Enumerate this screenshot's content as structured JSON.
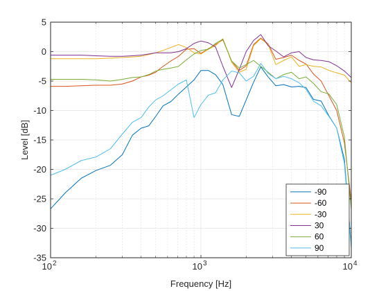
{
  "chart_data": {
    "type": "line",
    "title": "",
    "xlabel": "Frequency [Hz]",
    "ylabel": "Level [dB]",
    "xscale": "log",
    "xlim": [
      100,
      10000
    ],
    "ylim": [
      -35,
      5
    ],
    "yticks": [
      5,
      0,
      -5,
      -10,
      -15,
      -20,
      -25,
      -30,
      -35
    ],
    "xticks": [
      {
        "base": "10",
        "exp": "2",
        "value": 100
      },
      {
        "base": "10",
        "exp": "3",
        "value": 1000
      },
      {
        "base": "10",
        "exp": "4",
        "value": 10000
      }
    ],
    "grid": true,
    "minor_grid": true,
    "legend_position": "bottom-right",
    "series": [
      {
        "name": "-90",
        "color": "#0072BD",
        "x": [
          100,
          125,
          160,
          200,
          250,
          300,
          350,
          400,
          450,
          500,
          560,
          630,
          710,
          800,
          900,
          1000,
          1120,
          1250,
          1400,
          1600,
          1800,
          2000,
          2240,
          2500,
          2800,
          3150,
          3550,
          4000,
          4500,
          5000,
          5600,
          6300,
          7100,
          8000,
          9000,
          10000
        ],
        "y": [
          -26.7,
          -24.0,
          -21.5,
          -20.2,
          -19.3,
          -17.5,
          -14.2,
          -13.0,
          -12.6,
          -11.0,
          -9.2,
          -8.5,
          -7.2,
          -6.0,
          -4.8,
          -3.2,
          -3.2,
          -3.9,
          -5.6,
          -10.7,
          -11.0,
          -8.2,
          -5.2,
          -2.6,
          -4.3,
          -5.8,
          -5.6,
          -6.0,
          -5.9,
          -6.1,
          -8.1,
          -8.4,
          -10.9,
          -13.0,
          -18.3,
          -33.1
        ]
      },
      {
        "name": "-60",
        "color": "#D95319",
        "x": [
          100,
          125,
          160,
          200,
          250,
          300,
          350,
          400,
          450,
          500,
          560,
          630,
          710,
          800,
          900,
          1000,
          1120,
          1250,
          1400,
          1600,
          1800,
          2000,
          2240,
          2500,
          2800,
          3150,
          3550,
          4000,
          4500,
          5000,
          5600,
          6300,
          7100,
          8000,
          9000,
          10000
        ],
        "y": [
          -5.9,
          -5.9,
          -5.8,
          -5.7,
          -5.7,
          -5.5,
          -5.0,
          -4.3,
          -4.0,
          -3.5,
          -2.5,
          -1.6,
          -0.8,
          0.4,
          0.5,
          -0.3,
          0.5,
          1.2,
          2.0,
          -1.6,
          -3.2,
          -2.4,
          1.2,
          2.3,
          1.3,
          -1.3,
          -1.0,
          -0.6,
          -1.5,
          -2.1,
          -3.8,
          -5.0,
          -7.5,
          -10.0,
          -15.5,
          -25.4
        ]
      },
      {
        "name": "-30",
        "color": "#EDB120",
        "x": [
          100,
          125,
          160,
          200,
          250,
          300,
          350,
          400,
          450,
          500,
          560,
          630,
          710,
          800,
          900,
          1000,
          1120,
          1250,
          1400,
          1600,
          1800,
          2000,
          2240,
          2500,
          2800,
          3150,
          3550,
          4000,
          4500,
          5000,
          5600,
          6300,
          7100,
          8000,
          9000,
          10000
        ],
        "y": [
          -1.2,
          -1.2,
          -1.2,
          -1.2,
          -1.1,
          -1.0,
          -0.9,
          -0.8,
          -0.5,
          -0.2,
          0.2,
          0.7,
          1.2,
          0.7,
          -0.2,
          -0.4,
          0.4,
          1.0,
          2.2,
          -1.8,
          -3.5,
          -3.0,
          1.0,
          2.2,
          1.2,
          -2.2,
          -1.5,
          -0.9,
          -2.5,
          -2.2,
          -2.5,
          -2.6,
          -3.2,
          -3.6,
          -4.0,
          -5.3
        ]
      },
      {
        "name": "30",
        "color": "#7E2F8E",
        "x": [
          100,
          125,
          160,
          200,
          250,
          300,
          350,
          400,
          450,
          500,
          560,
          630,
          710,
          800,
          900,
          1000,
          1120,
          1250,
          1400,
          1600,
          1800,
          2000,
          2240,
          2500,
          2800,
          3150,
          3550,
          4000,
          4500,
          5000,
          5600,
          6300,
          7100,
          8000,
          9000,
          10000
        ],
        "y": [
          -0.6,
          -0.6,
          -0.6,
          -0.7,
          -0.8,
          -0.8,
          -0.7,
          -0.6,
          -0.4,
          -0.2,
          -0.2,
          -0.2,
          0.0,
          0.5,
          1.4,
          1.8,
          1.5,
          0.8,
          -2.5,
          -6.1,
          -3.0,
          0.0,
          1.9,
          2.9,
          1.0,
          0.1,
          -0.9,
          -0.2,
          0.0,
          -1.0,
          -1.4,
          -1.5,
          -1.7,
          -2.4,
          -3.3,
          -4.4
        ]
      },
      {
        "name": "60",
        "color": "#77AC30",
        "x": [
          100,
          125,
          160,
          200,
          250,
          300,
          350,
          400,
          450,
          500,
          560,
          630,
          710,
          800,
          900,
          1000,
          1120,
          1250,
          1400,
          1600,
          1800,
          2000,
          2240,
          2500,
          2800,
          3150,
          3550,
          4000,
          4500,
          5000,
          5600,
          6300,
          7100,
          8000,
          9000,
          10000
        ],
        "y": [
          -4.7,
          -4.7,
          -4.7,
          -4.8,
          -5.0,
          -4.7,
          -4.4,
          -4.3,
          -3.9,
          -3.3,
          -3.0,
          -2.8,
          -2.5,
          -1.4,
          -0.4,
          0.2,
          0.4,
          1.4,
          2.1,
          -1.6,
          -2.8,
          -2.2,
          -1.5,
          -2.5,
          -3.5,
          -4.6,
          -3.9,
          -3.5,
          -4.6,
          -4.3,
          -5.4,
          -6.8,
          -7.2,
          -9.0,
          -14.5,
          -26.8
        ]
      },
      {
        "name": "90",
        "color": "#4DBEEE",
        "x": [
          100,
          125,
          160,
          200,
          250,
          300,
          350,
          400,
          450,
          500,
          560,
          630,
          710,
          800,
          900,
          1000,
          1120,
          1250,
          1400,
          1600,
          1800,
          2000,
          2240,
          2500,
          2800,
          3150,
          3550,
          4000,
          4500,
          5000,
          5600,
          6300,
          7100,
          8000,
          9000,
          10000
        ],
        "y": [
          -21.0,
          -20.0,
          -18.5,
          -17.9,
          -16.5,
          -14.0,
          -12.0,
          -11.2,
          -9.4,
          -8.2,
          -7.5,
          -6.5,
          -5.5,
          -4.8,
          -11.2,
          -9.0,
          -7.4,
          -7.0,
          -4.8,
          -3.3,
          -3.6,
          -5.0,
          -4.2,
          -2.0,
          -3.7,
          -4.6,
          -4.2,
          -4.6,
          -5.3,
          -6.4,
          -8.4,
          -9.2,
          -11.0,
          -13.0,
          -19.0,
          -33.4
        ]
      }
    ]
  }
}
